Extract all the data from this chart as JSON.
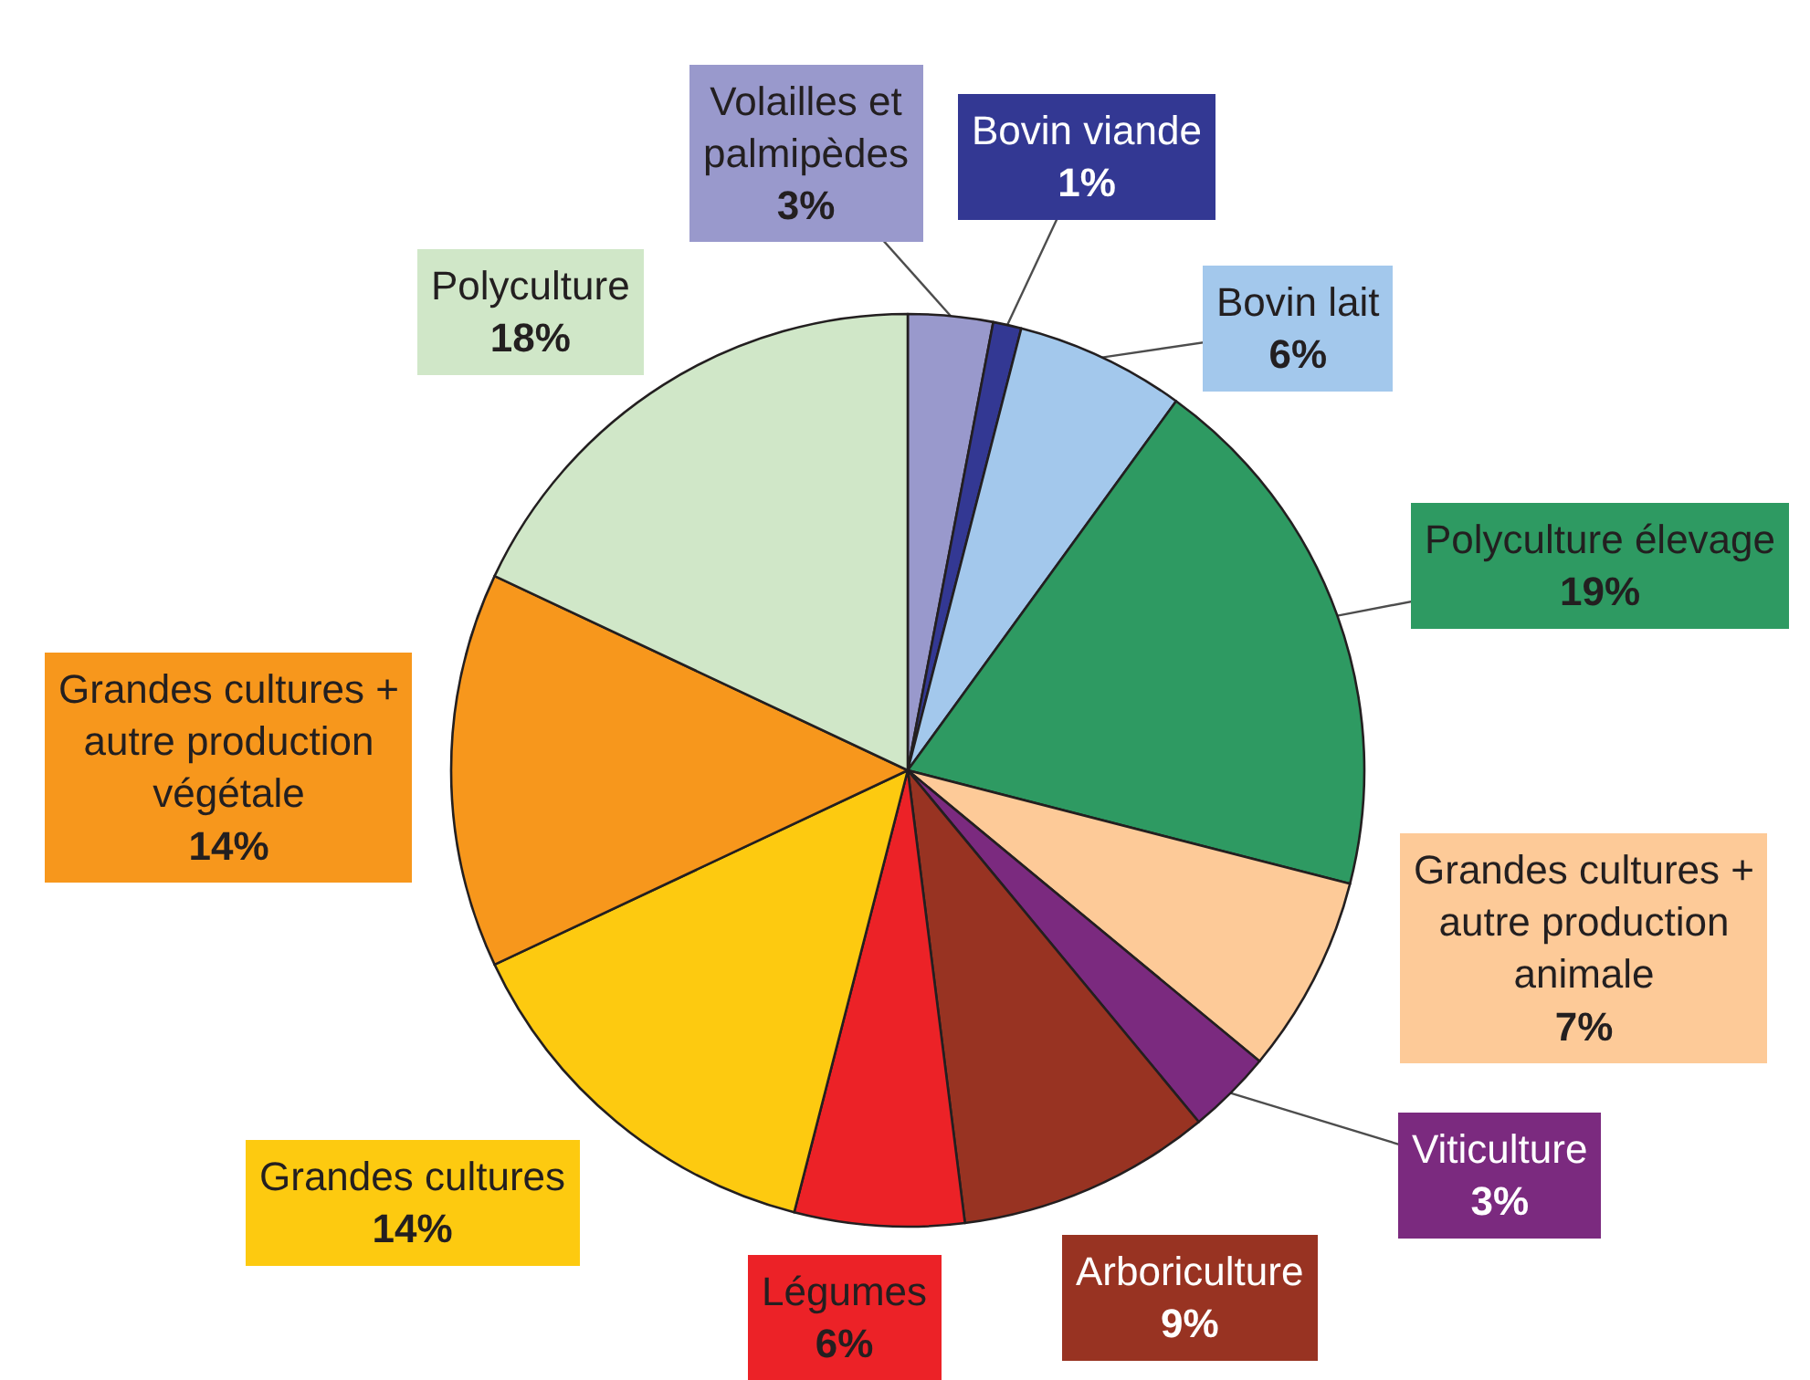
{
  "chart_data": {
    "type": "pie",
    "categories": [
      "Volailles et palmipèdes",
      "Bovin viande",
      "Bovin lait",
      "Polyculture élevage",
      "Grandes cultures + autre production animale",
      "Viticulture",
      "Arboriculture",
      "Légumes",
      "Grandes cultures",
      "Grandes cultures + autre production végétale",
      "Polyculture"
    ],
    "values": [
      3,
      1,
      6,
      19,
      7,
      3,
      9,
      6,
      14,
      14,
      18
    ],
    "colors": [
      "#9999cc",
      "#333893",
      "#a3c8ec",
      "#2e9a62",
      "#fdca98",
      "#7b2a7f",
      "#983322",
      "#ec2227",
      "#fdca10",
      "#f7971c",
      "#d0e7c8"
    ],
    "value_labels": [
      "3%",
      "1%",
      "6%",
      "19%",
      "7%",
      "3%",
      "9%",
      "6%",
      "14%",
      "14%",
      "18%"
    ],
    "legend": false
  }
}
